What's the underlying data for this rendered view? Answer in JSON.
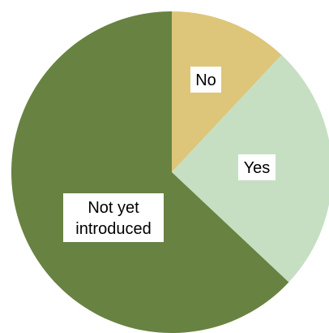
{
  "chart_data": {
    "type": "pie",
    "title": "",
    "start_angle_deg": 0,
    "direction": "clockwise",
    "slices": [
      {
        "label": "No",
        "value": 12,
        "color": "#DDC67A"
      },
      {
        "label": "Yes",
        "value": 25,
        "color": "#C6DFC3"
      },
      {
        "label": "Not yet introduced",
        "value": 63,
        "color": "#688242"
      }
    ],
    "legend": "none",
    "data_labels": "category names inside white boxes"
  }
}
